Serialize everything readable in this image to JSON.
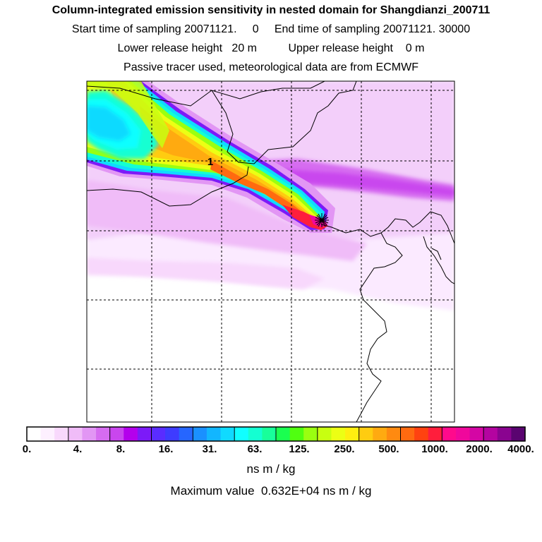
{
  "header": {
    "title": "Column-integrated emission sensitivity in nested domain for Shangdianzi_200711",
    "sampling_line": "Start time of sampling 20071121.     0     End time of sampling 20071121. 30000",
    "release_line": "Lower release height   20 m          Upper release height    0 m",
    "tracer_line": "Passive tracer used, meteorological data are from ECMWF"
  },
  "map": {
    "station_marker": "star-burst",
    "trajectory_label": "1",
    "colors": {
      "frame": "#000000",
      "grid": "#000000",
      "coast": "#000000",
      "background": "#ffffff"
    }
  },
  "colorbar": {
    "colors": [
      "#ffffff",
      "#fdf0ff",
      "#f8d8fc",
      "#f0bcf8",
      "#e296f4",
      "#d66cf0",
      "#c946ee",
      "#b400ec",
      "#7c1af8",
      "#5a2cff",
      "#3e3cff",
      "#2666ff",
      "#1a90ff",
      "#12b6ff",
      "#10daff",
      "#10ffff",
      "#14ffd2",
      "#18ff9a",
      "#1aff50",
      "#50ff10",
      "#9aff10",
      "#c8ff10",
      "#ecff14",
      "#ffee10",
      "#ffcc10",
      "#ffaa10",
      "#ff8a10",
      "#ff6a10",
      "#ff4210",
      "#ff1e3c",
      "#ff0a8c",
      "#f0089c",
      "#d406a4",
      "#b404a0",
      "#8a0490",
      "#5a0470"
    ],
    "tick_labels": [
      "0.",
      "4.",
      "8.",
      "16.",
      "31.",
      "63.",
      "125.",
      "250.",
      "500.",
      "1000.",
      "2000.",
      "4000."
    ],
    "units": "ns m / kg",
    "maximum_text": "Maximum value  0.632E+04 ns m / kg"
  }
}
